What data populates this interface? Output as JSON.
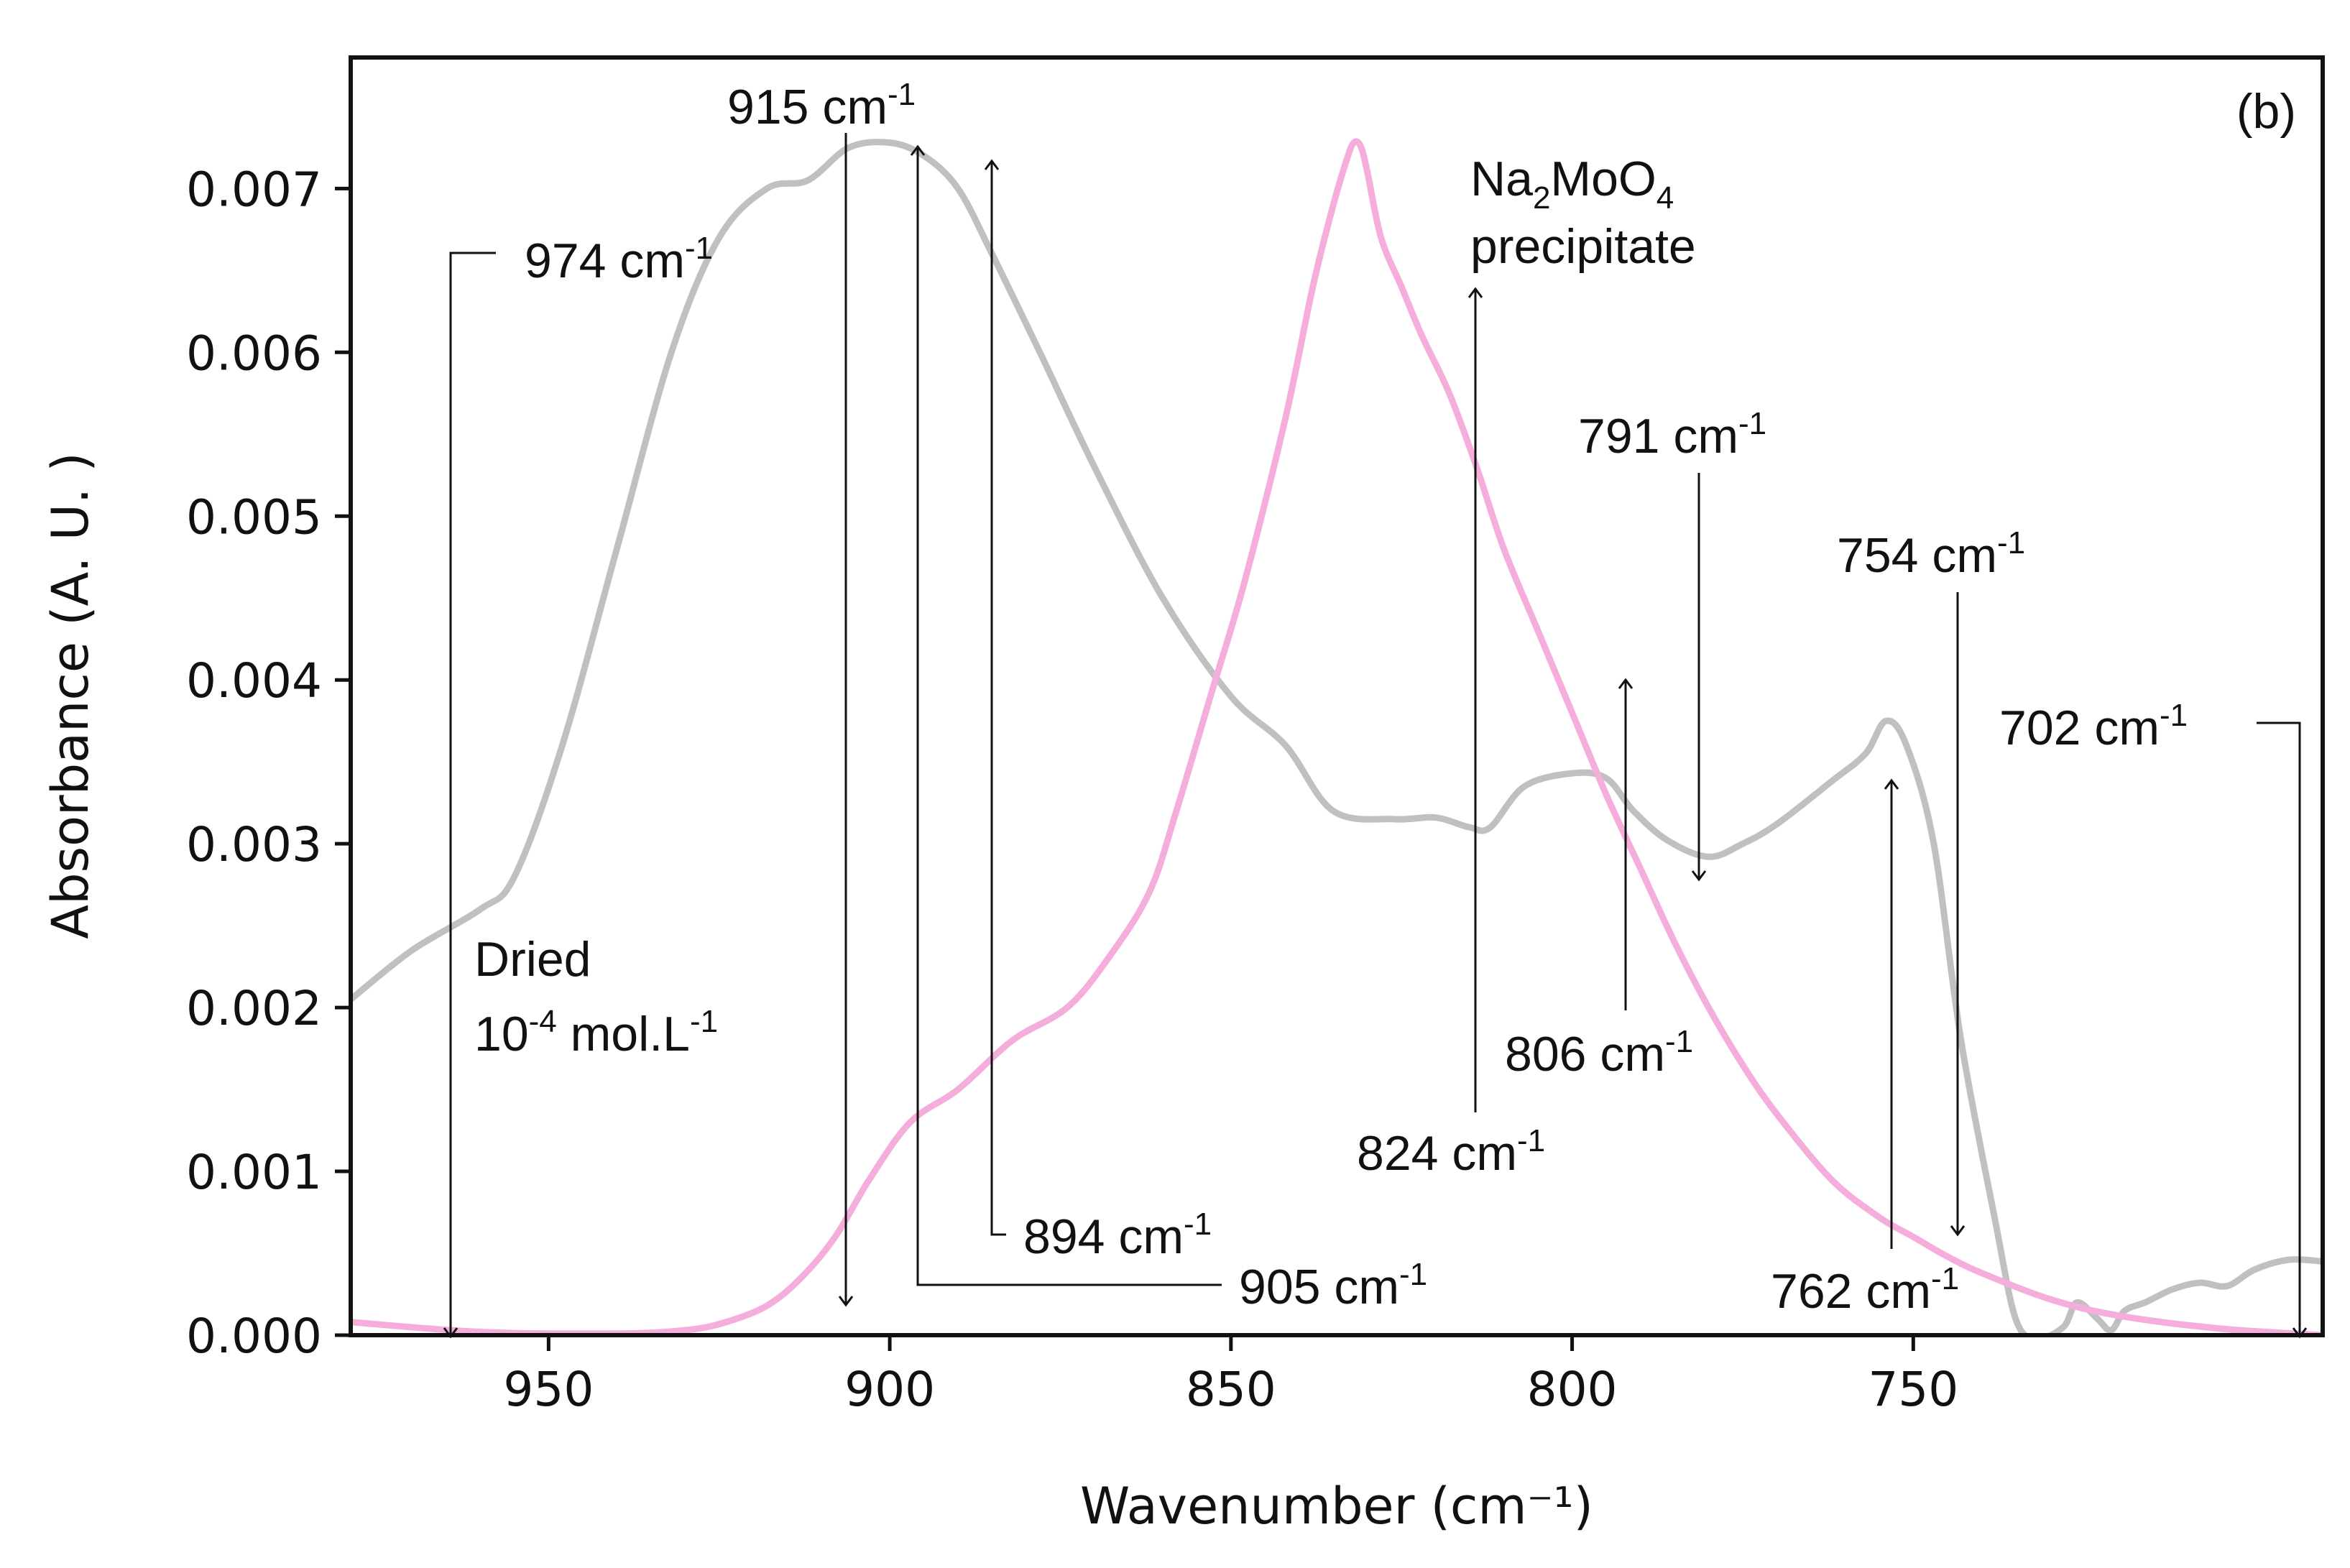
{
  "chart_data": {
    "type": "line",
    "panel_label": "(b)",
    "xlabel": "Wavenumber (cm⁻¹)",
    "ylabel": "Absorbance  (A. U. )",
    "xlim": [
      979,
      690
    ],
    "ylim": [
      0.0,
      0.0078
    ],
    "x_ticks": [
      950,
      900,
      850,
      800,
      750
    ],
    "x_tick_labels": [
      "950",
      "900",
      "850",
      "800",
      "750"
    ],
    "y_ticks": [
      0.0,
      0.001,
      0.002,
      0.003,
      0.004,
      0.005,
      0.006,
      0.007
    ],
    "y_tick_labels": [
      "0.000",
      "0.001",
      "0.002",
      "0.003",
      "0.004",
      "0.005",
      "0.006",
      "0.007"
    ],
    "series": [
      {
        "name": "Dried 10-4 mol.L-1",
        "color": "#c0c0c0",
        "x": [
          979,
          970,
          960,
          955,
          948,
          940,
          932,
          925,
          918,
          912,
          906,
          900,
          895,
          890,
          885,
          878,
          870,
          860,
          850,
          842,
          835,
          826,
          820,
          815,
          812,
          807,
          800,
          795,
          791,
          786,
          780,
          775,
          770,
          762,
          757,
          754,
          751,
          747,
          743,
          738,
          735,
          732,
          728,
          726,
          723,
          721,
          719,
          716,
          712,
          708,
          704,
          700,
          695,
          690
        ],
        "y": [
          0.00205,
          0.00235,
          0.0026,
          0.0028,
          0.0036,
          0.0048,
          0.006,
          0.0067,
          0.007,
          0.00705,
          0.00725,
          0.00728,
          0.0072,
          0.007,
          0.0066,
          0.006,
          0.0053,
          0.0045,
          0.0039,
          0.0036,
          0.0032,
          0.00315,
          0.00316,
          0.0031,
          0.0031,
          0.00335,
          0.00343,
          0.0034,
          0.0032,
          0.00302,
          0.00292,
          0.003,
          0.00312,
          0.00338,
          0.00355,
          0.00375,
          0.0036,
          0.003,
          0.0018,
          0.0007,
          0.0001,
          -2e-05,
          5e-05,
          0.0002,
          0.0001,
          3e-05,
          0.00015,
          0.0002,
          0.00028,
          0.00032,
          0.0003,
          0.0004,
          0.00046,
          0.00045
        ]
      },
      {
        "name": "Na2MoO4 precipitate",
        "color": "#f5aedb",
        "x": [
          979,
          960,
          940,
          930,
          924,
          918,
          913,
          908,
          903,
          897,
          890,
          882,
          874,
          868,
          862,
          858,
          853,
          848,
          842,
          838,
          835,
          833,
          832,
          831,
          830,
          828,
          825,
          822,
          818,
          814,
          810,
          805,
          800,
          795,
          790,
          785,
          780,
          775,
          770,
          762,
          755,
          750,
          745,
          740,
          730,
          720,
          705,
          690
        ],
        "y": [
          8e-05,
          2e-05,
          1e-05,
          3e-05,
          8e-05,
          0.00018,
          0.00035,
          0.0006,
          0.00095,
          0.0013,
          0.0015,
          0.0018,
          0.002,
          0.0023,
          0.0027,
          0.0032,
          0.0039,
          0.0046,
          0.0056,
          0.0064,
          0.0069,
          0.00718,
          0.00728,
          0.00726,
          0.0071,
          0.0067,
          0.0064,
          0.0061,
          0.00575,
          0.0053,
          0.0048,
          0.0043,
          0.0038,
          0.0033,
          0.00285,
          0.0024,
          0.002,
          0.00165,
          0.00135,
          0.00095,
          0.00072,
          0.0006,
          0.00048,
          0.00038,
          0.00022,
          0.00012,
          4e-05,
          0.0
        ]
      }
    ],
    "annotations": [
      {
        "text": "974 cm",
        "sup": "-1"
      },
      {
        "text": "915 cm",
        "sup": "-1"
      },
      {
        "text": "905 cm",
        "sup": "-1"
      },
      {
        "text": "894 cm",
        "sup": "-1"
      },
      {
        "text": "824 cm",
        "sup": "-1"
      },
      {
        "text": "806 cm",
        "sup": "-1"
      },
      {
        "text": "791 cm",
        "sup": "-1"
      },
      {
        "text": "762 cm",
        "sup": "-1"
      },
      {
        "text": "754 cm",
        "sup": "-1"
      },
      {
        "text": "702 cm",
        "sup": "-1"
      }
    ],
    "labels": {
      "dried_line1": "Dried",
      "dried_line2_a": "10",
      "dried_line2_sup1": "-4",
      "dried_line2_b": " mol.L",
      "dried_line2_sup2": "-1",
      "na_a": "Na",
      "na_sub1": "2",
      "na_b": "MoO",
      "na_sub2": "4",
      "na_line2": "precipitate"
    }
  }
}
